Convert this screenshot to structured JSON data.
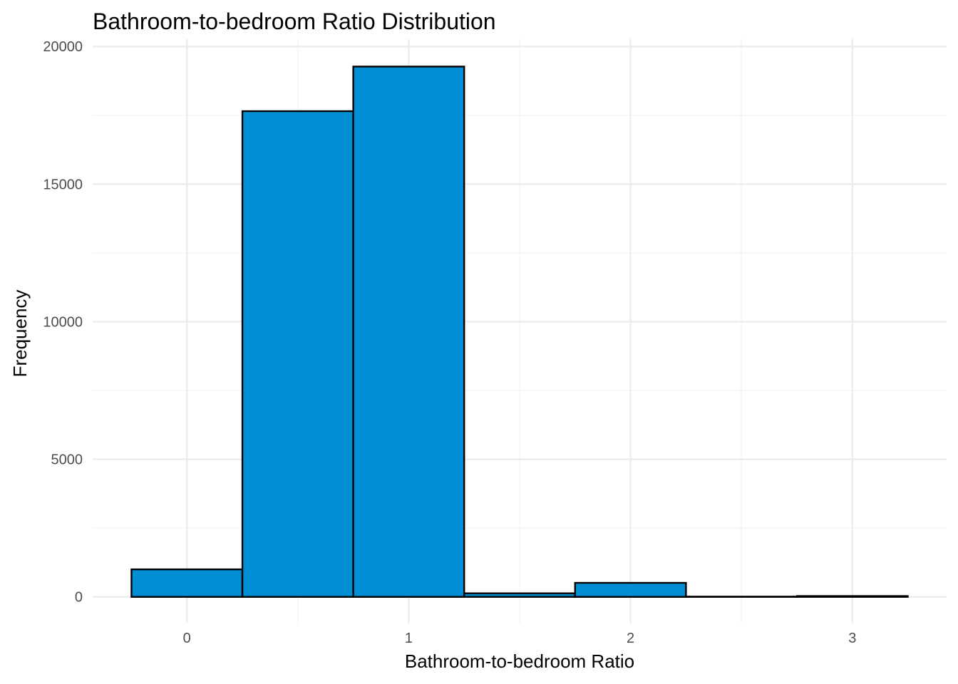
{
  "chart_data": {
    "type": "bar",
    "title": "Bathroom-to-bedroom Ratio Distribution",
    "xlabel": "Bathroom-to-bedroom Ratio",
    "ylabel": "Frequency",
    "bin_width": 0.5,
    "bins": [
      {
        "x_start": -0.25,
        "x_end": 0.25,
        "value": 1000
      },
      {
        "x_start": 0.25,
        "x_end": 0.75,
        "value": 17650
      },
      {
        "x_start": 0.75,
        "x_end": 1.25,
        "value": 19270
      },
      {
        "x_start": 1.25,
        "x_end": 1.75,
        "value": 130
      },
      {
        "x_start": 1.75,
        "x_end": 2.25,
        "value": 510
      },
      {
        "x_start": 2.25,
        "x_end": 2.75,
        "value": 10
      },
      {
        "x_start": 2.75,
        "x_end": 3.25,
        "value": 30
      }
    ],
    "xlim": [
      -0.425,
      3.425
    ],
    "ylim": [
      -965,
      20265
    ],
    "x_ticks": [
      0,
      1,
      2,
      3
    ],
    "x_tick_labels": [
      "0",
      "1",
      "2",
      "3"
    ],
    "y_ticks": [
      0,
      5000,
      10000,
      15000,
      20000
    ],
    "y_tick_labels": [
      "0",
      "5000",
      "10000",
      "15000",
      "20000"
    ],
    "grid": true,
    "colors": {
      "bar_fill": "#008FD5",
      "bar_stroke": "#000000",
      "grid_major": "#EBEBEB",
      "grid_minor": "#F2F2F2"
    }
  }
}
